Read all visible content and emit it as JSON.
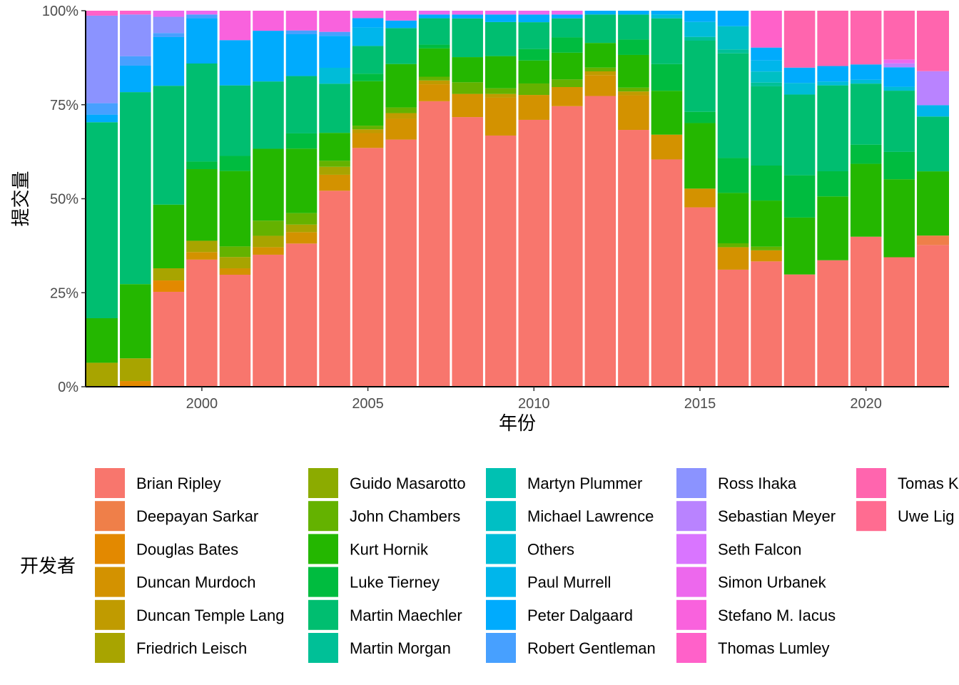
{
  "chart_data": {
    "type": "bar",
    "stacked": true,
    "normalized": true,
    "xlabel": "年份",
    "ylabel": "提交量",
    "x_ticks": [
      "2000",
      "2005",
      "2010",
      "2015",
      "2020"
    ],
    "y_ticks": [
      "0%",
      "25%",
      "50%",
      "75%",
      "100%"
    ],
    "ylim": [
      0,
      1
    ],
    "legend_title": "开发者",
    "legend_position": "bottom",
    "years": [
      1997,
      1998,
      1999,
      2000,
      2001,
      2002,
      2003,
      2004,
      2005,
      2006,
      2007,
      2008,
      2009,
      2010,
      2011,
      2012,
      2013,
      2014,
      2015,
      2016,
      2017,
      2018,
      2019,
      2020,
      2021,
      2022
    ],
    "series": [
      {
        "name": "Brian Ripley",
        "color": "#F8766D",
        "values": [
          0,
          0,
          0.234,
          0.337,
          0.297,
          0.349,
          0.377,
          0.491,
          0.644,
          0.654,
          0.757,
          0.697,
          0.664,
          0.697,
          0.735,
          0.767,
          0.668,
          0.596,
          0.479,
          0.302,
          0.34,
          0.292,
          0.327,
          0.391,
          0.332,
          0.375
        ]
      },
      {
        "name": "Deepayan Sarkar",
        "color": "#EF7F49",
        "values": [
          0,
          0,
          0,
          0,
          0,
          0,
          0,
          0,
          0,
          0,
          0,
          0,
          0,
          0,
          0,
          0,
          0,
          0,
          0,
          0,
          0,
          0,
          0,
          0,
          0,
          0.025
        ]
      },
      {
        "name": "Douglas Bates",
        "color": "#E38900",
        "values": [
          0,
          0.015,
          0.028,
          0,
          0,
          0,
          0,
          0,
          0,
          0,
          0,
          0,
          0,
          0,
          0,
          0,
          0,
          0,
          0,
          0,
          0,
          0,
          0,
          0,
          0,
          0
        ]
      },
      {
        "name": "Duncan Murdoch",
        "color": "#D39200",
        "values": [
          0,
          0,
          0,
          0.02,
          0.017,
          0.02,
          0.03,
          0.04,
          0.04,
          0.055,
          0.045,
          0.06,
          0.1,
          0.065,
          0.05,
          0.055,
          0.09,
          0.065,
          0.05,
          0.058,
          0.03,
          0,
          0,
          0,
          0,
          0
        ]
      },
      {
        "name": "Duncan Temple Lang",
        "color": "#C09B00",
        "values": [
          0,
          0,
          0,
          0,
          0,
          0,
          0,
          0,
          0.01,
          0.015,
          0.01,
          0,
          0.01,
          0,
          0,
          0.01,
          0.01,
          0,
          0,
          0,
          0,
          0,
          0,
          0,
          0,
          0
        ]
      },
      {
        "name": "Friedrich Leisch",
        "color": "#A8A400",
        "values": [
          0.063,
          0.06,
          0.03,
          0.03,
          0.03,
          0.03,
          0.02,
          0.02,
          0,
          0,
          0,
          0,
          0,
          0,
          0,
          0,
          0,
          0,
          0,
          0,
          0,
          0,
          0,
          0,
          0,
          0
        ]
      },
      {
        "name": "Guido Masarotto",
        "color": "#8CAB00",
        "values": [
          0,
          0,
          0,
          0,
          0,
          0,
          0,
          0,
          0,
          0,
          0,
          0,
          0,
          0,
          0,
          0,
          0,
          0,
          0,
          0,
          0,
          0,
          0,
          0,
          0,
          0
        ]
      },
      {
        "name": "John Chambers",
        "color": "#64B200",
        "values": [
          0,
          0,
          0,
          0,
          0.028,
          0.04,
          0.03,
          0.015,
          0.01,
          0.015,
          0.01,
          0.03,
          0.015,
          0.03,
          0.02,
          0.01,
          0.01,
          0,
          0,
          0.01,
          0.01,
          0,
          0,
          0,
          0,
          0
        ]
      },
      {
        "name": "Kurt Hornik",
        "color": "#24B700",
        "values": [
          0.117,
          0.196,
          0.157,
          0.19,
          0.2,
          0.19,
          0.17,
          0.07,
          0.12,
          0.115,
          0.075,
          0.065,
          0.085,
          0.06,
          0.07,
          0.065,
          0.085,
          0.115,
          0.175,
          0.13,
          0.125,
          0.148,
          0.165,
          0.19,
          0.2,
          0.17
        ]
      },
      {
        "name": "Luke Tierney",
        "color": "#00BC3F",
        "values": [
          0,
          0,
          0,
          0.02,
          0.04,
          0,
          0.04,
          0,
          0.02,
          0,
          0.01,
          0,
          0,
          0.03,
          0.04,
          0,
          0.04,
          0.07,
          0.03,
          0.09,
          0.095,
          0.11,
          0.065,
          0.05,
          0.07,
          0
        ]
      },
      {
        "name": "Martin Maechler",
        "color": "#00BE70",
        "values": [
          0.515,
          0.507,
          0.293,
          0.26,
          0.187,
          0.178,
          0.151,
          0.123,
          0.075,
          0.095,
          0.07,
          0.1,
          0.09,
          0.07,
          0.05,
          0.075,
          0.065,
          0.12,
          0.19,
          0.27,
          0.215,
          0.21,
          0.222,
          0.159,
          0.157,
          0.145
        ]
      },
      {
        "name": "Martin Morgan",
        "color": "#00C097",
        "values": [
          0,
          0,
          0,
          0,
          0,
          0,
          0,
          0,
          0,
          0,
          0,
          0,
          0,
          0,
          0,
          0,
          0,
          0,
          0.01,
          0.01,
          0.01,
          0,
          0,
          0,
          0,
          0
        ]
      },
      {
        "name": "Martyn Plummer",
        "color": "#00C1B2",
        "values": [
          0,
          0,
          0,
          0,
          0,
          0,
          0,
          0,
          0,
          0,
          0,
          0,
          0,
          0,
          0,
          0,
          0,
          0,
          0,
          0,
          0,
          0,
          0,
          0,
          0,
          0
        ]
      },
      {
        "name": "Michael Lawrence",
        "color": "#00BFC4",
        "values": [
          0,
          0,
          0,
          0,
          0,
          0,
          0,
          0,
          0,
          0,
          0,
          0,
          0,
          0,
          0,
          0,
          0,
          0,
          0,
          0.06,
          0.03,
          0,
          0,
          0,
          0,
          0
        ]
      },
      {
        "name": "Others",
        "color": "#00BCD8",
        "values": [
          0,
          0,
          0,
          0,
          0,
          0,
          0,
          0.04,
          0,
          0,
          0,
          0,
          0,
          0,
          0,
          0,
          0,
          0.01,
          0.04,
          0,
          0,
          0.03,
          0.01,
          0.01,
          0.01,
          0
        ]
      },
      {
        "name": "Paul Murrell",
        "color": "#00B6EB",
        "values": [
          0,
          0,
          0,
          0,
          0,
          0,
          0,
          0,
          0.05,
          0,
          0,
          0,
          0,
          0,
          0,
          0,
          0,
          0,
          0,
          0,
          0.03,
          0,
          0,
          0,
          0,
          0.03
        ]
      },
      {
        "name": "Peter Dalgaard",
        "color": "#00ABFD",
        "values": [
          0.02,
          0.07,
          0.12,
          0.12,
          0.12,
          0.134,
          0.11,
          0.08,
          0.025,
          0.02,
          0.01,
          0.01,
          0.02,
          0.02,
          0.01,
          0.01,
          0.01,
          0.01,
          0.03,
          0.04,
          0.035,
          0.04,
          0.04,
          0.04,
          0.05,
          0
        ]
      },
      {
        "name": "Robert Gentleman",
        "color": "#47A0FF",
        "values": [
          0.03,
          0.025,
          0.01,
          0.01,
          0,
          0,
          0.01,
          0.01,
          0,
          0,
          0,
          0,
          0,
          0,
          0,
          0,
          0,
          0,
          0,
          0,
          0,
          0,
          0,
          0,
          0,
          0
        ]
      },
      {
        "name": "Ross Ihaka",
        "color": "#8B93FF",
        "values": [
          0.23,
          0.11,
          0.04,
          0,
          0,
          0,
          0,
          0,
          0,
          0,
          0,
          0,
          0,
          0,
          0,
          0,
          0,
          0,
          0,
          0,
          0,
          0,
          0,
          0,
          0,
          0
        ]
      },
      {
        "name": "Sebastian Meyer",
        "color": "#B983FF",
        "values": [
          0,
          0,
          0,
          0,
          0,
          0,
          0,
          0,
          0,
          0,
          0,
          0,
          0,
          0,
          0,
          0,
          0,
          0,
          0,
          0,
          0,
          0,
          0,
          0,
          0.01,
          0.09
        ]
      },
      {
        "name": "Seth Falcon",
        "color": "#D975FF",
        "values": [
          0,
          0,
          0,
          0,
          0,
          0,
          0,
          0,
          0,
          0,
          0,
          0,
          0,
          0,
          0,
          0,
          0,
          0,
          0,
          0,
          0,
          0,
          0,
          0,
          0,
          0
        ]
      },
      {
        "name": "Simon Urbanek",
        "color": "#ED68ED",
        "values": [
          0,
          0,
          0.015,
          0.01,
          0,
          0,
          0,
          0,
          0,
          0,
          0.01,
          0.01,
          0.01,
          0.01,
          0.01,
          0,
          0,
          0,
          0,
          0,
          0,
          0,
          0,
          0,
          0.01,
          0
        ]
      },
      {
        "name": "Stefano M. Iacus",
        "color": "#F962DD",
        "values": [
          0,
          0,
          0,
          0,
          0.078,
          0.053,
          0.052,
          0.053,
          0.02,
          0.026,
          0,
          0,
          0,
          0,
          0,
          0,
          0,
          0,
          0,
          0,
          0,
          0,
          0,
          0,
          0,
          0
        ]
      },
      {
        "name": "Thomas Lumley",
        "color": "#FF61C9",
        "values": [
          0.013,
          0.01,
          0,
          0,
          0,
          0,
          0,
          0,
          0,
          0,
          0,
          0,
          0,
          0,
          0,
          0,
          0,
          0,
          0,
          0,
          0.1,
          0,
          0,
          0,
          0,
          0
        ]
      },
      {
        "name": "Tomas Kalibera",
        "color": "#FF65AE",
        "values": [
          0,
          0,
          0,
          0,
          0,
          0,
          0,
          0,
          0,
          0,
          0,
          0,
          0,
          0,
          0,
          0,
          0,
          0,
          0,
          0,
          0,
          0.148,
          0.143,
          0.14,
          0.125,
          0.16
        ]
      },
      {
        "name": "Uwe Ligges",
        "color": "#FF6C91",
        "values": [
          0,
          0,
          0,
          0,
          0,
          0,
          0,
          0,
          0,
          0,
          0,
          0,
          0,
          0,
          0,
          0,
          0,
          0,
          0,
          0,
          0,
          0,
          0,
          0,
          0,
          0
        ]
      }
    ],
    "legend_labels": [
      "Brian Ripley",
      "Deepayan Sarkar",
      "Douglas Bates",
      "Duncan Murdoch",
      "Duncan Temple Lang",
      "Friedrich Leisch",
      "Guido Masarotto",
      "John Chambers",
      "Kurt Hornik",
      "Luke Tierney",
      "Martin Maechler",
      "Martin Morgan",
      "Martyn Plummer",
      "Michael Lawrence",
      "Others",
      "Paul Murrell",
      "Peter Dalgaard",
      "Robert Gentleman",
      "Ross Ihaka",
      "Sebastian Meyer",
      "Seth Falcon",
      "Simon Urbanek",
      "Stefano M. Iacus",
      "Thomas Lumley",
      "Tomas K",
      "Uwe Lig"
    ]
  }
}
